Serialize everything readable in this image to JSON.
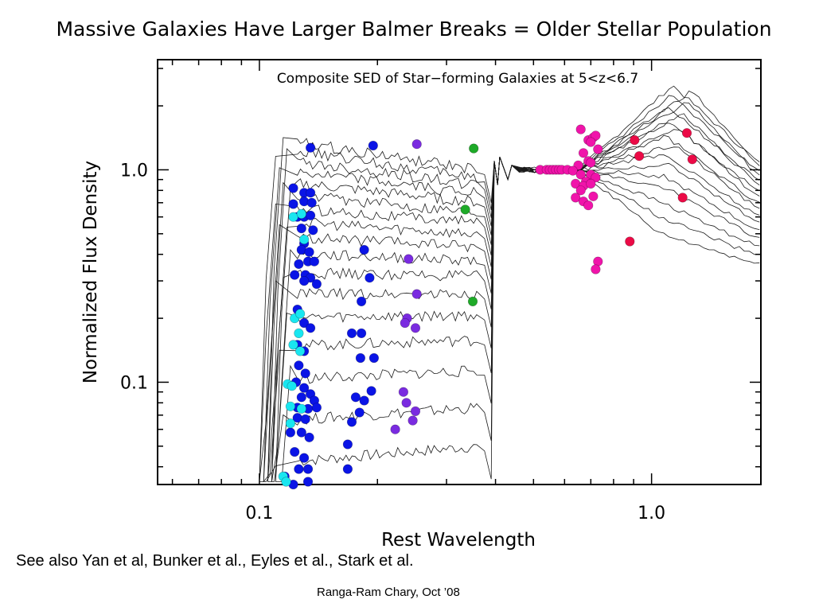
{
  "slide": {
    "title": "Massive Galaxies Have Larger Balmer Breaks = Older Stellar Population",
    "footnote": "See also Yan et al, Bunker et al., Eyles et al., Stark et al.",
    "credit": "Ranga-Ram Chary, Oct ’08"
  },
  "chart_data": {
    "type": "scatter",
    "title": "Composite SED of Star−forming Galaxies at 5<z<6.7",
    "xlabel": "Rest Wavelength",
    "ylabel": "Normalized Flux Density",
    "xscale": "log",
    "yscale": "log",
    "xlim": [
      0.055,
      1.9
    ],
    "ylim": [
      0.033,
      3.3
    ],
    "xticks": [
      {
        "value": 0.1,
        "label": "0.1"
      },
      {
        "value": 1.0,
        "label": "1.0"
      }
    ],
    "yticks": [
      {
        "value": 0.1,
        "label": "0.1"
      },
      {
        "value": 1.0,
        "label": "1.0"
      }
    ],
    "colors": {
      "blue": "#0a14e6",
      "cyan": "#19e6f0",
      "purple": "#7a2be0",
      "green": "#1eaa28",
      "magenta": "#f014aa",
      "red": "#eb0a46",
      "line": "#1a1a1a"
    },
    "series": [
      {
        "color": "blue",
        "points": [
          [
            0.135,
            1.27
          ],
          [
            0.195,
            1.3
          ],
          [
            0.122,
            0.82
          ],
          [
            0.13,
            0.78
          ],
          [
            0.135,
            0.78
          ],
          [
            0.13,
            0.71
          ],
          [
            0.122,
            0.69
          ],
          [
            0.136,
            0.7
          ],
          [
            0.125,
            0.6
          ],
          [
            0.13,
            0.6
          ],
          [
            0.135,
            0.61
          ],
          [
            0.128,
            0.53
          ],
          [
            0.137,
            0.52
          ],
          [
            0.13,
            0.45
          ],
          [
            0.128,
            0.42
          ],
          [
            0.134,
            0.41
          ],
          [
            0.185,
            0.42
          ],
          [
            0.133,
            0.37
          ],
          [
            0.138,
            0.37
          ],
          [
            0.126,
            0.36
          ],
          [
            0.123,
            0.32
          ],
          [
            0.131,
            0.32
          ],
          [
            0.135,
            0.31
          ],
          [
            0.14,
            0.29
          ],
          [
            0.13,
            0.3
          ],
          [
            0.191,
            0.31
          ],
          [
            0.182,
            0.24
          ],
          [
            0.125,
            0.22
          ],
          [
            0.13,
            0.19
          ],
          [
            0.135,
            0.18
          ],
          [
            0.172,
            0.17
          ],
          [
            0.182,
            0.17
          ],
          [
            0.125,
            0.15
          ],
          [
            0.13,
            0.14
          ],
          [
            0.196,
            0.13
          ],
          [
            0.181,
            0.13
          ],
          [
            0.126,
            0.12
          ],
          [
            0.131,
            0.11
          ],
          [
            0.124,
            0.1
          ],
          [
            0.13,
            0.094
          ],
          [
            0.135,
            0.088
          ],
          [
            0.193,
            0.091
          ],
          [
            0.128,
            0.085
          ],
          [
            0.138,
            0.082
          ],
          [
            0.176,
            0.085
          ],
          [
            0.185,
            0.082
          ],
          [
            0.125,
            0.076
          ],
          [
            0.133,
            0.075
          ],
          [
            0.14,
            0.076
          ],
          [
            0.18,
            0.072
          ],
          [
            0.125,
            0.068
          ],
          [
            0.131,
            0.067
          ],
          [
            0.172,
            0.065
          ],
          [
            0.12,
            0.058
          ],
          [
            0.128,
            0.058
          ],
          [
            0.134,
            0.055
          ],
          [
            0.168,
            0.051
          ],
          [
            0.123,
            0.047
          ],
          [
            0.13,
            0.044
          ],
          [
            0.126,
            0.039
          ],
          [
            0.133,
            0.039
          ],
          [
            0.168,
            0.039
          ],
          [
            0.116,
            0.036
          ],
          [
            0.122,
            0.033
          ],
          [
            0.133,
            0.034
          ]
        ]
      },
      {
        "color": "cyan",
        "points": [
          [
            0.122,
            0.6
          ],
          [
            0.128,
            0.62
          ],
          [
            0.13,
            0.47
          ],
          [
            0.123,
            0.2
          ],
          [
            0.127,
            0.21
          ],
          [
            0.126,
            0.17
          ],
          [
            0.122,
            0.15
          ],
          [
            0.127,
            0.14
          ],
          [
            0.118,
            0.098
          ],
          [
            0.121,
            0.096
          ],
          [
            0.12,
            0.077
          ],
          [
            0.128,
            0.075
          ],
          [
            0.12,
            0.064
          ],
          [
            0.115,
            0.036
          ],
          [
            0.117,
            0.034
          ]
        ]
      },
      {
        "color": "purple",
        "points": [
          [
            0.252,
            1.32
          ],
          [
            0.24,
            0.38
          ],
          [
            0.252,
            0.26
          ],
          [
            0.238,
            0.2
          ],
          [
            0.25,
            0.18
          ],
          [
            0.235,
            0.19
          ],
          [
            0.233,
            0.09
          ],
          [
            0.237,
            0.08
          ],
          [
            0.25,
            0.073
          ],
          [
            0.246,
            0.066
          ],
          [
            0.222,
            0.06
          ]
        ]
      },
      {
        "color": "green",
        "points": [
          [
            0.352,
            1.26
          ],
          [
            0.335,
            0.65
          ],
          [
            0.35,
            0.24
          ]
        ]
      },
      {
        "color": "magenta",
        "points": [
          [
            0.66,
            1.55
          ],
          [
            0.69,
            1.38
          ],
          [
            0.71,
            1.42
          ],
          [
            0.72,
            1.45
          ],
          [
            0.7,
            1.35
          ],
          [
            0.73,
            1.25
          ],
          [
            0.67,
            1.2
          ],
          [
            0.69,
            1.1
          ],
          [
            0.65,
            1.05
          ],
          [
            0.7,
            1.08
          ],
          [
            0.52,
            1.0
          ],
          [
            0.54,
            1.0
          ],
          [
            0.55,
            1.0
          ],
          [
            0.56,
            1.0
          ],
          [
            0.57,
            1.0
          ],
          [
            0.58,
            1.0
          ],
          [
            0.59,
            1.0
          ],
          [
            0.61,
            1.0
          ],
          [
            0.63,
            0.99
          ],
          [
            0.66,
            0.95
          ],
          [
            0.7,
            0.95
          ],
          [
            0.72,
            0.92
          ],
          [
            0.68,
            0.88
          ],
          [
            0.64,
            0.86
          ],
          [
            0.67,
            0.84
          ],
          [
            0.66,
            0.8
          ],
          [
            0.7,
            0.86
          ],
          [
            0.71,
            0.75
          ],
          [
            0.64,
            0.74
          ],
          [
            0.67,
            0.71
          ],
          [
            0.69,
            0.68
          ],
          [
            0.73,
            0.37
          ],
          [
            0.72,
            0.34
          ]
        ]
      },
      {
        "color": "red",
        "points": [
          [
            0.905,
            1.38
          ],
          [
            1.23,
            1.49
          ],
          [
            0.93,
            1.16
          ],
          [
            1.27,
            1.12
          ],
          [
            1.2,
            0.74
          ],
          [
            0.88,
            0.46
          ]
        ]
      }
    ],
    "model_lines": "overlaid composite SED template curves (approx. 17 curves)"
  }
}
